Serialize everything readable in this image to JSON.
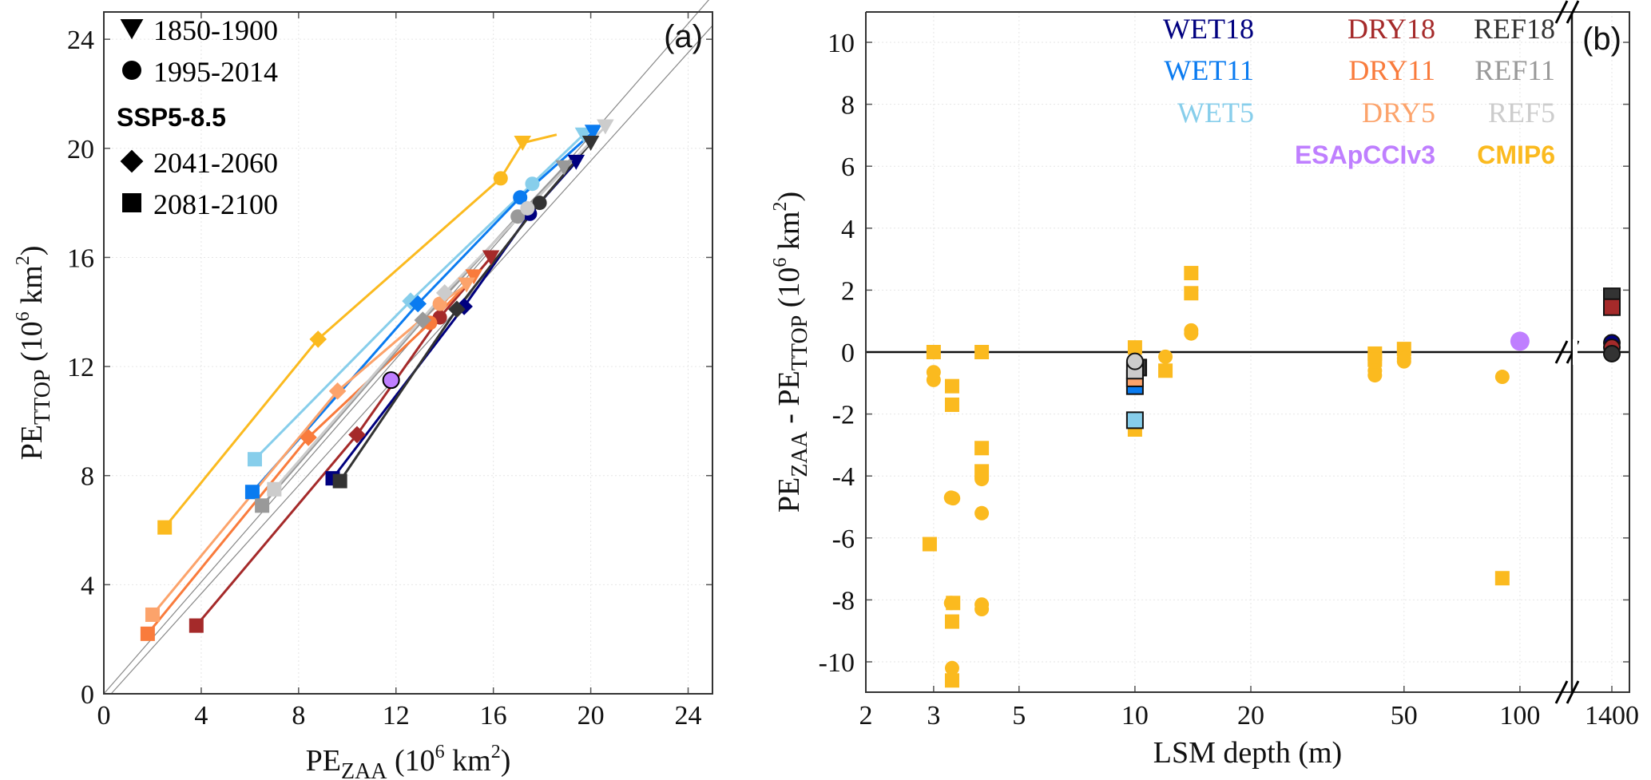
{
  "chart_data": [
    {
      "panel": "(a)",
      "type": "line",
      "xlabel": "PE_ZAA (10^6 km^2)",
      "ylabel": "PE_TTOP (10^6 km^2)",
      "xlim": [
        0,
        25
      ],
      "ylim": [
        0,
        25
      ],
      "xticks": [
        0,
        4,
        8,
        12,
        16,
        20,
        24
      ],
      "yticks": [
        0,
        4,
        8,
        12,
        16,
        20,
        24
      ],
      "grid": true,
      "reference_lines": "two thin gray 1:1 lines near the diagonal",
      "legend": {
        "placement": "top-left",
        "entries": [
          {
            "marker": "triangle-down",
            "label": "1850-1900"
          },
          {
            "marker": "circle",
            "label": "1995-2014"
          },
          {
            "heading": "SSP5-8.5"
          },
          {
            "marker": "diamond",
            "label": "2041-2060"
          },
          {
            "marker": "square",
            "label": "2081-2100"
          }
        ]
      },
      "marker_order": [
        "square",
        "diamond",
        "circle",
        "triangle"
      ],
      "series": [
        {
          "name": "CMIP6",
          "color": "#FBBA1F",
          "points": [
            [
              2.5,
              6.1
            ],
            [
              8.8,
              13.0
            ],
            [
              16.3,
              18.9
            ],
            [
              17.2,
              20.2
            ]
          ],
          "line_end": [
            18.6,
            20.5
          ]
        },
        {
          "name": "WET5",
          "color": "#87CEEB",
          "points": [
            [
              6.2,
              8.6
            ],
            [
              12.6,
              14.4
            ],
            [
              17.6,
              18.7
            ],
            [
              19.7,
              20.5
            ]
          ]
        },
        {
          "name": "WET11",
          "color": "#0A7BF0",
          "points": [
            [
              6.1,
              7.4
            ],
            [
              12.9,
              14.3
            ],
            [
              17.1,
              18.2
            ],
            [
              20.1,
              20.6
            ]
          ]
        },
        {
          "name": "WET18",
          "color": "#00007F",
          "points": [
            [
              9.4,
              7.9
            ],
            [
              14.8,
              14.2
            ],
            [
              17.5,
              17.6
            ],
            [
              19.4,
              19.5
            ]
          ]
        },
        {
          "name": "DRY18",
          "color": "#A52A2A",
          "points": [
            [
              3.8,
              2.5
            ],
            [
              10.4,
              9.5
            ],
            [
              13.8,
              13.8
            ],
            [
              15.9,
              16.0
            ]
          ]
        },
        {
          "name": "DRY11",
          "color": "#F97B3C",
          "points": [
            [
              1.8,
              2.2
            ],
            [
              8.4,
              9.4
            ],
            [
              13.4,
              13.6
            ],
            [
              15.2,
              15.3
            ]
          ]
        },
        {
          "name": "DRY5",
          "color": "#FCA36B",
          "points": [
            [
              2.0,
              2.9
            ],
            [
              9.6,
              11.1
            ],
            [
              13.8,
              14.3
            ],
            [
              14.9,
              15.0
            ]
          ]
        },
        {
          "name": "REF18",
          "color": "#333333",
          "points": [
            [
              9.7,
              7.8
            ],
            [
              14.5,
              14.1
            ],
            [
              17.9,
              18.0
            ],
            [
              20.0,
              20.2
            ]
          ]
        },
        {
          "name": "REF11",
          "color": "#999999",
          "points": [
            [
              6.5,
              6.9
            ],
            [
              13.1,
              13.7
            ],
            [
              17.0,
              17.5
            ],
            [
              18.9,
              19.3
            ]
          ]
        },
        {
          "name": "REF5",
          "color": "#CCCCCC",
          "points": [
            [
              7.0,
              7.5
            ],
            [
              14.0,
              14.7
            ],
            [
              17.4,
              17.8
            ],
            [
              20.6,
              20.8
            ]
          ]
        }
      ],
      "observation": {
        "name": "ESApCCIv3",
        "color": "#BF7FFF",
        "marker": "circle",
        "point": [
          11.8,
          11.5
        ]
      }
    },
    {
      "panel": "(b)",
      "type": "scatter",
      "xlabel": "LSM depth (m)",
      "ylabel": "PE_ZAA - PE_TTOP (10^6 km^2)",
      "xscale": "log",
      "xlim": [
        2,
        160
      ],
      "x_break_value": 1400,
      "xticks": [
        2,
        3,
        5,
        10,
        20,
        50,
        100,
        1400
      ],
      "ylim": [
        -11,
        11
      ],
      "yticks": [
        -10,
        -8,
        -6,
        -4,
        -2,
        0,
        2,
        4,
        6,
        8,
        10
      ],
      "grid": true,
      "legend": {
        "placement": "top-right",
        "entries": [
          {
            "label": "WET18",
            "color": "#00007F"
          },
          {
            "label": "DRY18",
            "color": "#A52A2A"
          },
          {
            "label": "REF18",
            "color": "#333333"
          },
          {
            "label": "WET11",
            "color": "#0A7BF0"
          },
          {
            "label": "DRY11",
            "color": "#F97B3C"
          },
          {
            "label": "REF11",
            "color": "#999999"
          },
          {
            "label": "WET5",
            "color": "#87CEEB"
          },
          {
            "label": "DRY5",
            "color": "#FCA36B"
          },
          {
            "label": "REF5",
            "color": "#CCCCCC"
          },
          {
            "label": "ESApCCIv3",
            "color": "#BF7FFF",
            "bold": true
          },
          {
            "label": "CMIP6",
            "color": "#FBBA1F",
            "bold": true
          }
        ]
      },
      "cmip6_points": [
        {
          "x": 3.0,
          "y": 0.0,
          "m": "square"
        },
        {
          "x": 3.0,
          "y": -0.65,
          "m": "circle"
        },
        {
          "x": 3.0,
          "y": -0.9,
          "m": "circle"
        },
        {
          "x": 2.93,
          "y": -6.2,
          "m": "square"
        },
        {
          "x": 3.35,
          "y": -1.1,
          "m": "square"
        },
        {
          "x": 3.35,
          "y": -1.7,
          "m": "square"
        },
        {
          "x": 3.33,
          "y": -4.7,
          "m": "circle"
        },
        {
          "x": 3.37,
          "y": -4.72,
          "m": "circle"
        },
        {
          "x": 3.33,
          "y": -8.1,
          "m": "circle"
        },
        {
          "x": 3.37,
          "y": -8.1,
          "m": "square"
        },
        {
          "x": 3.35,
          "y": -8.7,
          "m": "square"
        },
        {
          "x": 3.35,
          "y": -10.2,
          "m": "circle"
        },
        {
          "x": 3.35,
          "y": -10.6,
          "m": "square"
        },
        {
          "x": 4.0,
          "y": 0.0,
          "m": "square"
        },
        {
          "x": 4.0,
          "y": -3.1,
          "m": "square"
        },
        {
          "x": 4.0,
          "y": -3.85,
          "m": "square"
        },
        {
          "x": 4.0,
          "y": -4.1,
          "m": "circle"
        },
        {
          "x": 4.0,
          "y": -5.2,
          "m": "circle"
        },
        {
          "x": 4.0,
          "y": -8.15,
          "m": "circle"
        },
        {
          "x": 4.0,
          "y": -8.3,
          "m": "circle"
        },
        {
          "x": 10.0,
          "y": 0.15,
          "m": "square"
        },
        {
          "x": 10.0,
          "y": -2.5,
          "m": "square"
        },
        {
          "x": 12.0,
          "y": -0.15,
          "m": "circle"
        },
        {
          "x": 12.0,
          "y": -0.6,
          "m": "square"
        },
        {
          "x": 14.0,
          "y": 2.55,
          "m": "square"
        },
        {
          "x": 14.0,
          "y": 1.9,
          "m": "square"
        },
        {
          "x": 14.0,
          "y": 0.6,
          "m": "circle"
        },
        {
          "x": 14.0,
          "y": 0.7,
          "m": "circle"
        },
        {
          "x": 42.0,
          "y": -0.05,
          "m": "square"
        },
        {
          "x": 42.0,
          "y": -0.25,
          "m": "square"
        },
        {
          "x": 42.0,
          "y": -0.6,
          "m": "circle"
        },
        {
          "x": 42.0,
          "y": -0.75,
          "m": "circle"
        },
        {
          "x": 50.0,
          "y": 0.1,
          "m": "square"
        },
        {
          "x": 50.0,
          "y": -0.2,
          "m": "circle"
        },
        {
          "x": 50.0,
          "y": -0.3,
          "m": "circle"
        },
        {
          "x": 90.0,
          "y": -0.8,
          "m": "circle"
        },
        {
          "x": 90.0,
          "y": -7.3,
          "m": "square"
        }
      ],
      "model_points": [
        {
          "name": "REF18",
          "x": 10.2,
          "y": -0.5,
          "m": "square",
          "color": "#333333"
        },
        {
          "name": "WET11",
          "x": 10.0,
          "y": -1.1,
          "m": "square",
          "color": "#0A7BF0"
        },
        {
          "name": "DRY5",
          "x": 10.0,
          "y": -0.85,
          "m": "square",
          "color": "#FCA36B"
        },
        {
          "name": "REF5",
          "x": 10.0,
          "y": -0.6,
          "m": "square",
          "color": "#CCCCCC"
        },
        {
          "name": "REF5",
          "x": 10.0,
          "y": -0.3,
          "m": "circle",
          "color": "#CCCCCC"
        },
        {
          "name": "WET5",
          "x": 10.0,
          "y": -2.2,
          "m": "square",
          "color": "#87CEEB"
        },
        {
          "name": "REF18",
          "x": 1400,
          "y": 1.8,
          "m": "square",
          "color": "#333333"
        },
        {
          "name": "DRY18",
          "x": 1400,
          "y": 1.45,
          "m": "square",
          "color": "#A52A2A"
        },
        {
          "name": "WET18",
          "x": 1400,
          "y": 0.3,
          "m": "circle",
          "color": "#00007F"
        },
        {
          "name": "DRY18",
          "x": 1400,
          "y": 0.15,
          "m": "circle",
          "color": "#A52A2A"
        },
        {
          "name": "REF18",
          "x": 1400,
          "y": -0.05,
          "m": "circle",
          "color": "#333333"
        }
      ],
      "observation": {
        "name": "ESApCCIv3",
        "x": 100,
        "y": 0.35,
        "m": "circle",
        "color": "#BF7FFF"
      }
    }
  ],
  "labels": {
    "panel_a": "(a)",
    "panel_b": "(b)",
    "a_xlabel_main": "PE",
    "a_xlabel_sub": "ZAA",
    "a_xlabel_unit": " (10",
    "a_xlabel_exp": "6",
    "a_xlabel_unit2": " km",
    "a_xlabel_exp2": "2",
    "a_xlabel_end": ")",
    "a_ylabel_main": "PE",
    "a_ylabel_sub": "TTOP",
    "b_ylabel_main1": "PE",
    "b_ylabel_sub1": "ZAA",
    "b_ylabel_mid": " - PE",
    "b_ylabel_sub2": "TTOP",
    "b_xlabel": "LSM depth (m)",
    "legend_1850": "1850-1900",
    "legend_1995": "1995-2014",
    "legend_ssp": "SSP5-8.5",
    "legend_2041": "2041-2060",
    "legend_2081": "2081-2100"
  }
}
